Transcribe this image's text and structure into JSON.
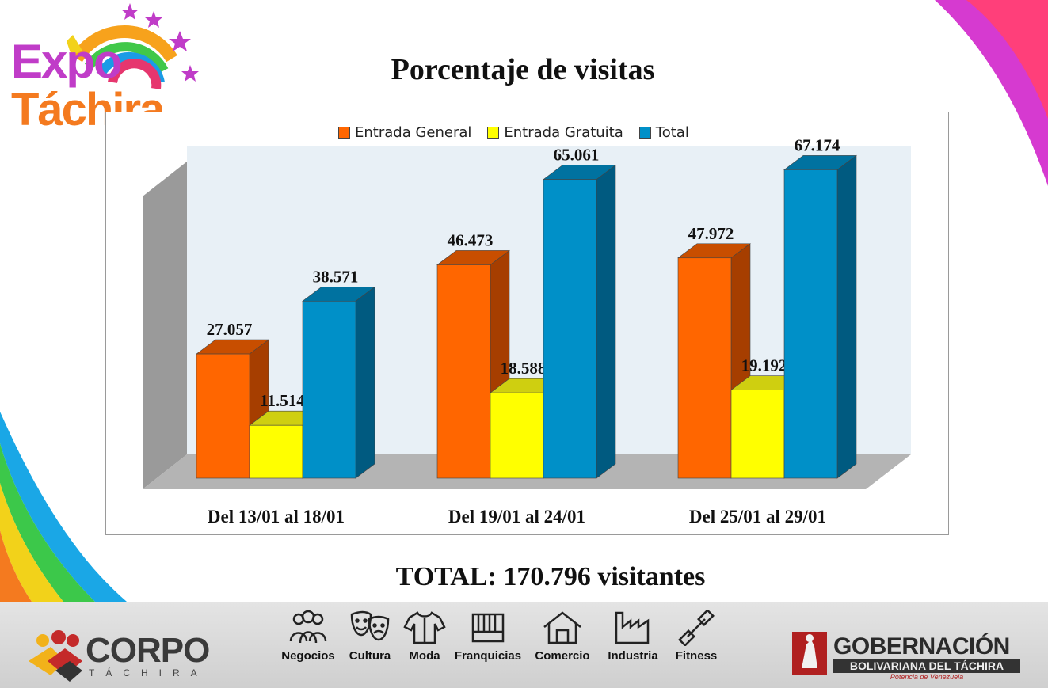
{
  "logo": {
    "word1": "Expo",
    "word2": "Táchira"
  },
  "title": "Porcentaje de visitas",
  "chart_data": {
    "type": "bar",
    "title": "Porcentaje de visitas",
    "categories": [
      "Del 13/01 al 18/01",
      "Del 19/01 al 24/01",
      "Del 25/01 al 29/01"
    ],
    "series": [
      {
        "name": "Entrada General",
        "values": [
          27.057,
          46.473,
          47.972
        ],
        "labels": [
          "27.057",
          "46.473",
          "47.972"
        ]
      },
      {
        "name": "Entrada Gratuita",
        "values": [
          11.514,
          18.588,
          19.192
        ],
        "labels": [
          "11.514",
          "18.588",
          "19.192"
        ]
      },
      {
        "name": "Total",
        "values": [
          38.571,
          65.061,
          67.174
        ],
        "labels": [
          "38.571",
          "65.061",
          "67.174"
        ]
      }
    ],
    "colors": [
      "#ff6600",
      "#ffff00",
      "#0090c8"
    ],
    "side_colors": [
      "#a63e00",
      "#b8b800",
      "#005a80"
    ],
    "top_colors": [
      "#c84e00",
      "#cfcf10",
      "#0072a0"
    ],
    "ylim": [
      0,
      75
    ],
    "legend": "top",
    "style": "3d-clustered"
  },
  "total_text": "TOTAL: 170.796 visitantes",
  "footer": {
    "corpo": {
      "word": "CORPO",
      "sub": "TÁCHIRA"
    },
    "nav": [
      {
        "label": "Negocios",
        "icon": "people-group-icon"
      },
      {
        "label": "Cultura",
        "icon": "theater-masks-icon"
      },
      {
        "label": "Moda",
        "icon": "shirt-icon"
      },
      {
        "label": "Franquicias",
        "icon": "storefront-icon"
      },
      {
        "label": "Comercio",
        "icon": "house-icon"
      },
      {
        "label": "Industria",
        "icon": "factory-icon"
      },
      {
        "label": "Fitness",
        "icon": "dumbbell-icon"
      }
    ],
    "gobernacion": {
      "title": "GOBERNACIÓN",
      "subtitle": "BOLIVARIANA DEL TÁCHIRA",
      "tagline": "Potencia de Venezuela"
    }
  }
}
